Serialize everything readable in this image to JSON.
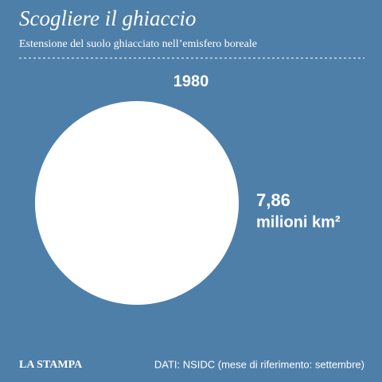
{
  "chart_data": {
    "type": "bubble",
    "title": "Scogliere il ghiaccio",
    "subtitle": "Estensione del suolo ghiacciato nell’emisfero boreale",
    "categories": [
      "1980"
    ],
    "values": [
      7.86
    ],
    "value_labels": [
      "7,86"
    ],
    "unit": "milioni km²",
    "color": "#ffffff"
  },
  "footer": {
    "brand": "LA STAMPA",
    "source": "DATI: NSIDC (mese di riferimento: settembre)"
  }
}
